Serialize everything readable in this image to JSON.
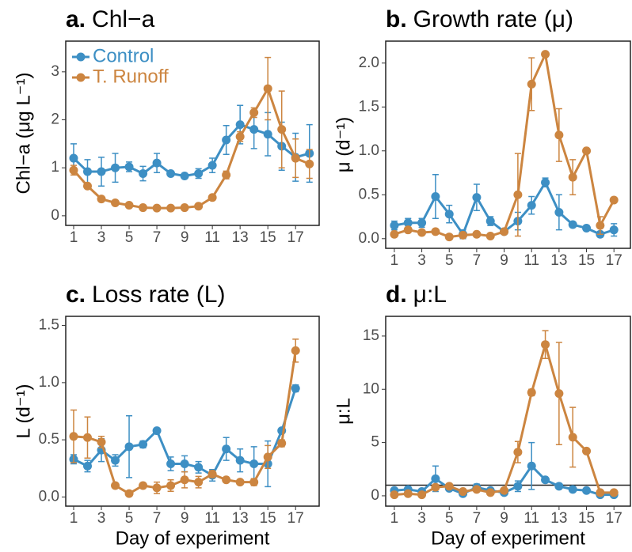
{
  "chart_data": [
    {
      "type": "line",
      "panel": "a.",
      "title": "Chl−a",
      "ylabel": "Chl−a (μg L⁻¹)",
      "x": [
        1,
        2,
        3,
        4,
        5,
        6,
        7,
        8,
        9,
        10,
        11,
        12,
        13,
        14,
        15,
        16,
        17,
        18
      ],
      "xlim": [
        0.43,
        18.7
      ],
      "ylim": [
        -0.2,
        3.64
      ],
      "xticks": [
        1,
        3,
        5,
        7,
        9,
        11,
        13,
        15,
        17
      ],
      "yticks": [
        0,
        1,
        2,
        3
      ],
      "legend": "top-left",
      "series": [
        {
          "name": "Control",
          "color": "#3d8fc4",
          "values": [
            1.2,
            0.92,
            0.92,
            1.0,
            1.02,
            0.88,
            1.1,
            0.88,
            0.83,
            0.88,
            1.05,
            1.58,
            1.9,
            1.8,
            1.7,
            1.45,
            1.22,
            1.3
          ],
          "errors": [
            0.3,
            0.25,
            0.3,
            0.3,
            0.1,
            0.15,
            0.2,
            0.05,
            0.05,
            0.1,
            0.15,
            0.3,
            0.4,
            0.4,
            0.45,
            0.5,
            0.5,
            0.6
          ]
        },
        {
          "name": "T. Runoff",
          "color": "#cc8540",
          "values": [
            0.95,
            0.62,
            0.35,
            0.27,
            0.22,
            0.17,
            0.16,
            0.16,
            0.17,
            0.2,
            0.38,
            0.85,
            1.65,
            2.15,
            2.65,
            1.8,
            1.2,
            1.08
          ],
          "errors": [
            0.1,
            0.05,
            0.03,
            0.02,
            0.02,
            0.02,
            0.02,
            0.02,
            0.02,
            0.03,
            0.05,
            0.08,
            0.1,
            0.1,
            0.65,
            0.8,
            0.4,
            0.3
          ]
        }
      ]
    },
    {
      "type": "line",
      "panel": "b.",
      "title": "Growth rate (μ)",
      "ylabel": "μ (d⁻¹)",
      "x": [
        1,
        2,
        3,
        4,
        5,
        6,
        7,
        8,
        9,
        10,
        11,
        12,
        13,
        14,
        15,
        16,
        17
      ],
      "xlim": [
        0.37,
        18.2
      ],
      "ylim": [
        -0.11,
        2.25
      ],
      "xticks": [
        1,
        3,
        5,
        7,
        9,
        11,
        13,
        15,
        17
      ],
      "yticks": [
        {
          "value": 0,
          "label": "0.0"
        },
        0.5,
        {
          "value": 1,
          "label": "1.0"
        },
        1.5,
        {
          "value": 2,
          "label": "2.0"
        }
      ],
      "series": [
        {
          "name": "Control",
          "color": "#3d8fc4",
          "values": [
            0.15,
            0.18,
            0.18,
            0.48,
            0.28,
            0.05,
            0.47,
            0.2,
            0.08,
            0.2,
            0.38,
            0.64,
            0.3,
            0.16,
            0.12,
            0.05,
            0.1
          ],
          "errors": [
            0.05,
            0.05,
            0.05,
            0.25,
            0.1,
            0.05,
            0.15,
            0.05,
            0.03,
            0.1,
            0.1,
            0.05,
            0.2,
            0.03,
            0.03,
            0.03,
            0.07
          ]
        },
        {
          "name": "T. Runoff",
          "color": "#cc8540",
          "values": [
            0.05,
            0.1,
            0.07,
            0.08,
            0.02,
            0.04,
            0.05,
            0.03,
            0.08,
            0.5,
            1.76,
            2.1,
            1.18,
            0.7,
            1.0,
            0.15,
            0.44
          ],
          "errors": [
            0.02,
            0.02,
            0.02,
            0.02,
            0.02,
            0.02,
            0.02,
            0.02,
            0.02,
            0.47,
            0.3,
            0.02,
            0.3,
            0.2,
            0.02,
            0.1,
            0.02
          ]
        }
      ]
    },
    {
      "type": "line",
      "panel": "c.",
      "title": "Loss rate (L)",
      "ylabel": "L (d⁻¹)",
      "xlabel": "Day of experiment",
      "x": [
        1,
        2,
        3,
        4,
        5,
        6,
        7,
        8,
        9,
        10,
        11,
        12,
        13,
        14,
        15,
        16,
        17
      ],
      "xlim": [
        0.43,
        18.7
      ],
      "ylim": [
        -0.08,
        1.58
      ],
      "xticks": [
        1,
        3,
        5,
        7,
        9,
        11,
        13,
        15,
        17
      ],
      "yticks": [
        {
          "value": 0,
          "label": "0.0"
        },
        0.5,
        {
          "value": 1,
          "label": "1.0"
        },
        1.5
      ],
      "series": [
        {
          "name": "Control",
          "color": "#3d8fc4",
          "values": [
            0.33,
            0.27,
            0.41,
            0.32,
            0.44,
            0.46,
            0.58,
            0.29,
            0.29,
            0.26,
            0.19,
            0.42,
            0.32,
            0.29,
            0.29,
            0.58,
            0.95
          ],
          "errors": [
            0.04,
            0.05,
            0.1,
            0.05,
            0.27,
            0.03,
            0.02,
            0.06,
            0.07,
            0.05,
            0.05,
            0.1,
            0.1,
            0.15,
            0.2,
            0.02,
            0.03
          ]
        },
        {
          "name": "T. Runoff",
          "color": "#cc8540",
          "values": [
            0.53,
            0.52,
            0.48,
            0.1,
            0.03,
            0.1,
            0.08,
            0.1,
            0.15,
            0.13,
            0.2,
            0.15,
            0.13,
            0.13,
            0.35,
            0.47,
            1.28
          ],
          "errors": [
            0.23,
            0.18,
            0.05,
            0.02,
            0.02,
            0.02,
            0.05,
            0.05,
            0.07,
            0.05,
            0.03,
            0.02,
            0.02,
            0.03,
            0.1,
            0.03,
            0.1
          ]
        }
      ]
    },
    {
      "type": "line",
      "panel": "d.",
      "title": "μ:L",
      "ylabel": "μ:L",
      "xlabel": "Day of experiment",
      "x": [
        1,
        2,
        3,
        4,
        5,
        6,
        7,
        8,
        9,
        10,
        11,
        12,
        13,
        14,
        15,
        16,
        17
      ],
      "xlim": [
        0.37,
        18.2
      ],
      "ylim": [
        -0.97,
        16.85
      ],
      "xticks": [
        1,
        3,
        5,
        7,
        9,
        11,
        13,
        15,
        17
      ],
      "yticks": [
        0,
        5,
        10,
        15
      ],
      "hline": 1,
      "series": [
        {
          "name": "Control",
          "color": "#3d8fc4",
          "values": [
            0.5,
            0.6,
            0.4,
            1.6,
            0.7,
            0.2,
            0.8,
            0.5,
            0.3,
            0.9,
            2.8,
            1.5,
            0.9,
            0.6,
            0.5,
            0.1,
            0.1
          ],
          "errors": [
            0.2,
            0.1,
            0.1,
            1.2,
            0.2,
            0.1,
            0.3,
            0.1,
            0.1,
            0.5,
            2.2,
            0.2,
            0.2,
            0.1,
            0.1,
            0.1,
            0.1
          ]
        },
        {
          "name": "T. Runoff",
          "color": "#cc8540",
          "values": [
            0.1,
            0.2,
            0.1,
            0.8,
            0.9,
            0.4,
            0.6,
            0.3,
            0.5,
            4.1,
            9.7,
            14.2,
            9.6,
            5.5,
            4.2,
            0.3,
            0.3
          ],
          "errors": [
            0.1,
            0.1,
            0.1,
            0.1,
            0.1,
            0.1,
            0.1,
            0.1,
            0.1,
            1.0,
            0.3,
            1.3,
            4.8,
            2.8,
            0.2,
            0.1,
            0.1
          ]
        }
      ]
    }
  ]
}
